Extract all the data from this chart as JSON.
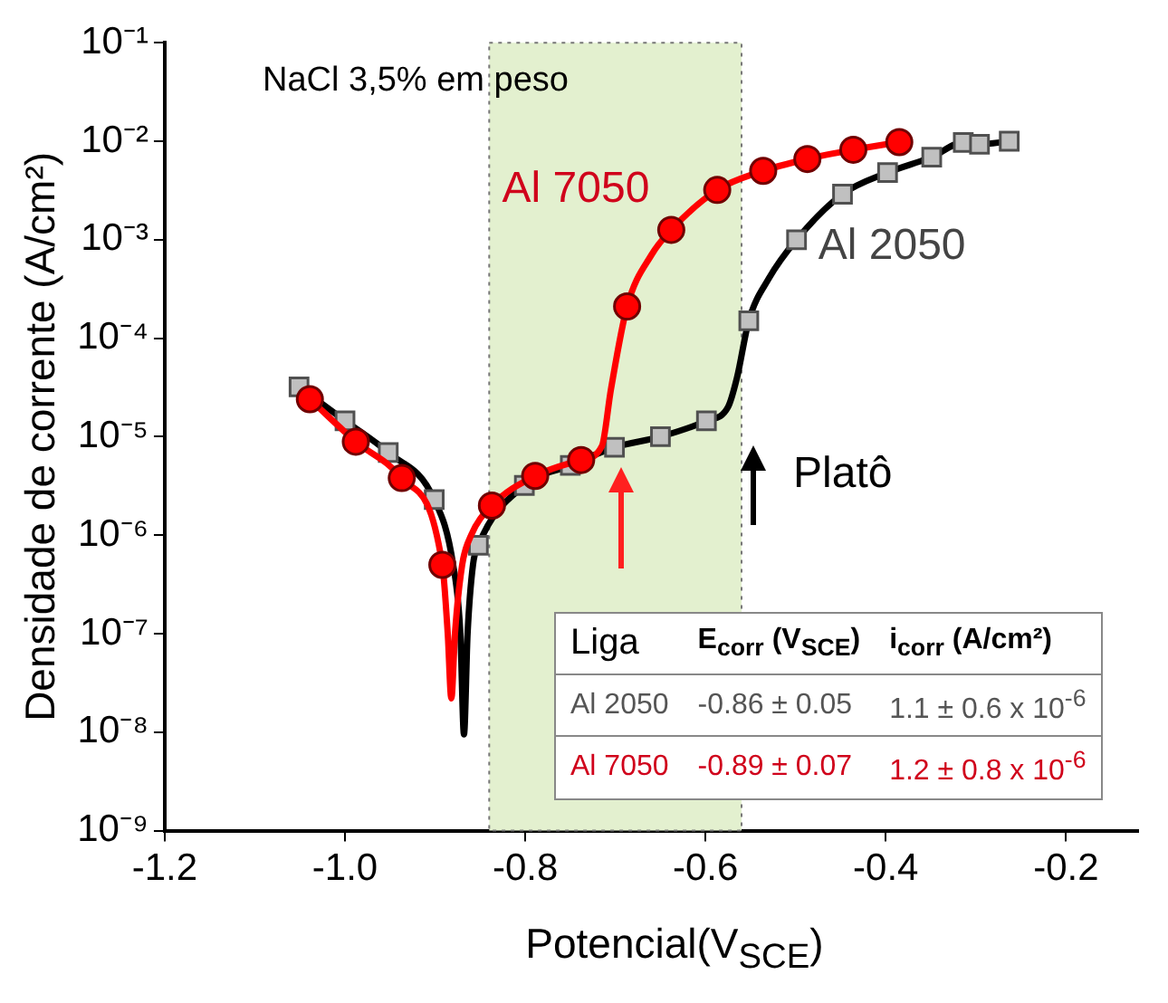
{
  "chart_data": {
    "type": "line",
    "xlabel": "Potencial(V$_{SCE}$)",
    "ylabel": "Densidade de corrente (A/cm²)",
    "xlim": [
      -1.2,
      -0.12
    ],
    "xticks": [
      -1.2,
      {
        "value": -1,
        "label": "-1.0"
      },
      -0.8,
      -0.6,
      -0.4,
      -0.2
    ],
    "ylim": [
      1e-09,
      0.1
    ],
    "yticks": [
      {
        "value": 1e-09,
        "label": "10⁻⁹"
      },
      {
        "value": 1e-08,
        "label": "10⁻⁸"
      },
      {
        "value": 1e-07,
        "label": "10⁻⁷"
      },
      {
        "value": 1e-06,
        "label": "10⁻⁶"
      },
      {
        "value": 1e-05,
        "label": "10⁻⁵"
      },
      {
        "value": 0.0001,
        "label": "10⁻⁴"
      },
      {
        "value": 0.001,
        "label": "10⁻³"
      },
      {
        "value": 0.01,
        "label": "10⁻²"
      },
      {
        "value": 0.1,
        "label": "10⁻¹"
      }
    ],
    "log": "y",
    "grid": false,
    "legend": false,
    "bands": [
      {
        "axis": "x",
        "from": -0.84,
        "to": -0.56,
        "color": "#e3f0cf"
      }
    ],
    "series": [
      {
        "type": "line",
        "color": "#000000",
        "marker": "none",
        "x": [
          -1.051,
          -1.0,
          -0.952,
          -0.901,
          -0.88,
          -0.872,
          -0.868,
          -0.864,
          -0.858,
          -0.852,
          -0.801,
          -0.75,
          -0.701,
          -0.65,
          -0.599,
          -0.575,
          -0.565,
          -0.552,
          -0.53,
          -0.499,
          -0.448,
          -0.398,
          -0.349,
          -0.314,
          -0.296,
          -0.263
        ],
        "values": [
          3.2e-05,
          1.45e-05,
          6.9e-06,
          2.3e-06,
          5e-07,
          1e-07,
          9.5e-09,
          1e-07,
          5e-07,
          7.9e-07,
          3.2e-06,
          5.1e-06,
          7.8e-06,
          1e-05,
          1.45e-05,
          2e-05,
          4e-05,
          0.00015,
          0.0004,
          0.001,
          0.0029,
          0.0048,
          0.0069,
          0.0097,
          0.0093,
          0.01
        ]
      },
      {
        "name": "Al 2050",
        "type": "scatter",
        "color": "#c0c0c0",
        "marker": "square",
        "x": [
          -1.051,
          -1.0,
          -0.952,
          -0.901,
          -0.852,
          -0.801,
          -0.75,
          -0.701,
          -0.65,
          -0.599,
          -0.552,
          -0.499,
          -0.448,
          -0.398,
          -0.349,
          -0.314,
          -0.296,
          -0.263
        ],
        "values": [
          3.2e-05,
          1.45e-05,
          6.9e-06,
          2.3e-06,
          7.9e-07,
          3.2e-06,
          5.1e-06,
          7.8e-06,
          1e-05,
          1.45e-05,
          0.00015,
          0.001,
          0.0029,
          0.0048,
          0.0069,
          0.0097,
          0.0093,
          0.01
        ]
      },
      {
        "type": "line",
        "color": "#ff0000",
        "marker": "none",
        "x": [
          -1.039,
          -0.988,
          -0.937,
          -0.892,
          -0.886,
          -0.882,
          -0.878,
          -0.87,
          -0.86,
          -0.837,
          -0.789,
          -0.738,
          -0.715,
          -0.705,
          -0.687,
          -0.66,
          -0.638,
          -0.587,
          -0.536,
          -0.487,
          -0.436,
          -0.385
        ],
        "values": [
          2.4e-05,
          8.9e-06,
          3.8e-06,
          5e-07,
          1e-07,
          2.2e-08,
          1e-07,
          5e-07,
          1e-06,
          2e-06,
          4e-06,
          5.8e-06,
          8e-06,
          3e-05,
          0.00021,
          0.0007,
          0.00126,
          0.0032,
          0.005,
          0.0066,
          0.0082,
          0.0098
        ]
      },
      {
        "name": "Al 7050",
        "type": "scatter",
        "color": "#ff0000",
        "marker": "circle",
        "x": [
          -1.039,
          -0.988,
          -0.937,
          -0.892,
          -0.837,
          -0.789,
          -0.738,
          -0.687,
          -0.638,
          -0.587,
          -0.536,
          -0.487,
          -0.436,
          -0.385
        ],
        "values": [
          2.4e-05,
          8.9e-06,
          3.8e-06,
          5e-07,
          2e-06,
          4e-06,
          5.8e-06,
          0.00021,
          0.00126,
          0.0032,
          0.005,
          0.0066,
          0.0082,
          0.0098
        ]
      }
    ],
    "annotations": [
      "NaCl 3,5% em peso",
      "Platô",
      "Liga",
      "E$_{corr}$ (V$_{SCE}$)",
      "i$_{corr}$ (A/cm²)",
      "Al 2050",
      "-0.86 ± 0.05",
      "1.1 ± 0.6 x 10$^{-6}$",
      "Al 7050",
      "-0.89 ± 0.07",
      "1.2 ± 0.8 x 10$^{-6}$"
    ]
  }
}
